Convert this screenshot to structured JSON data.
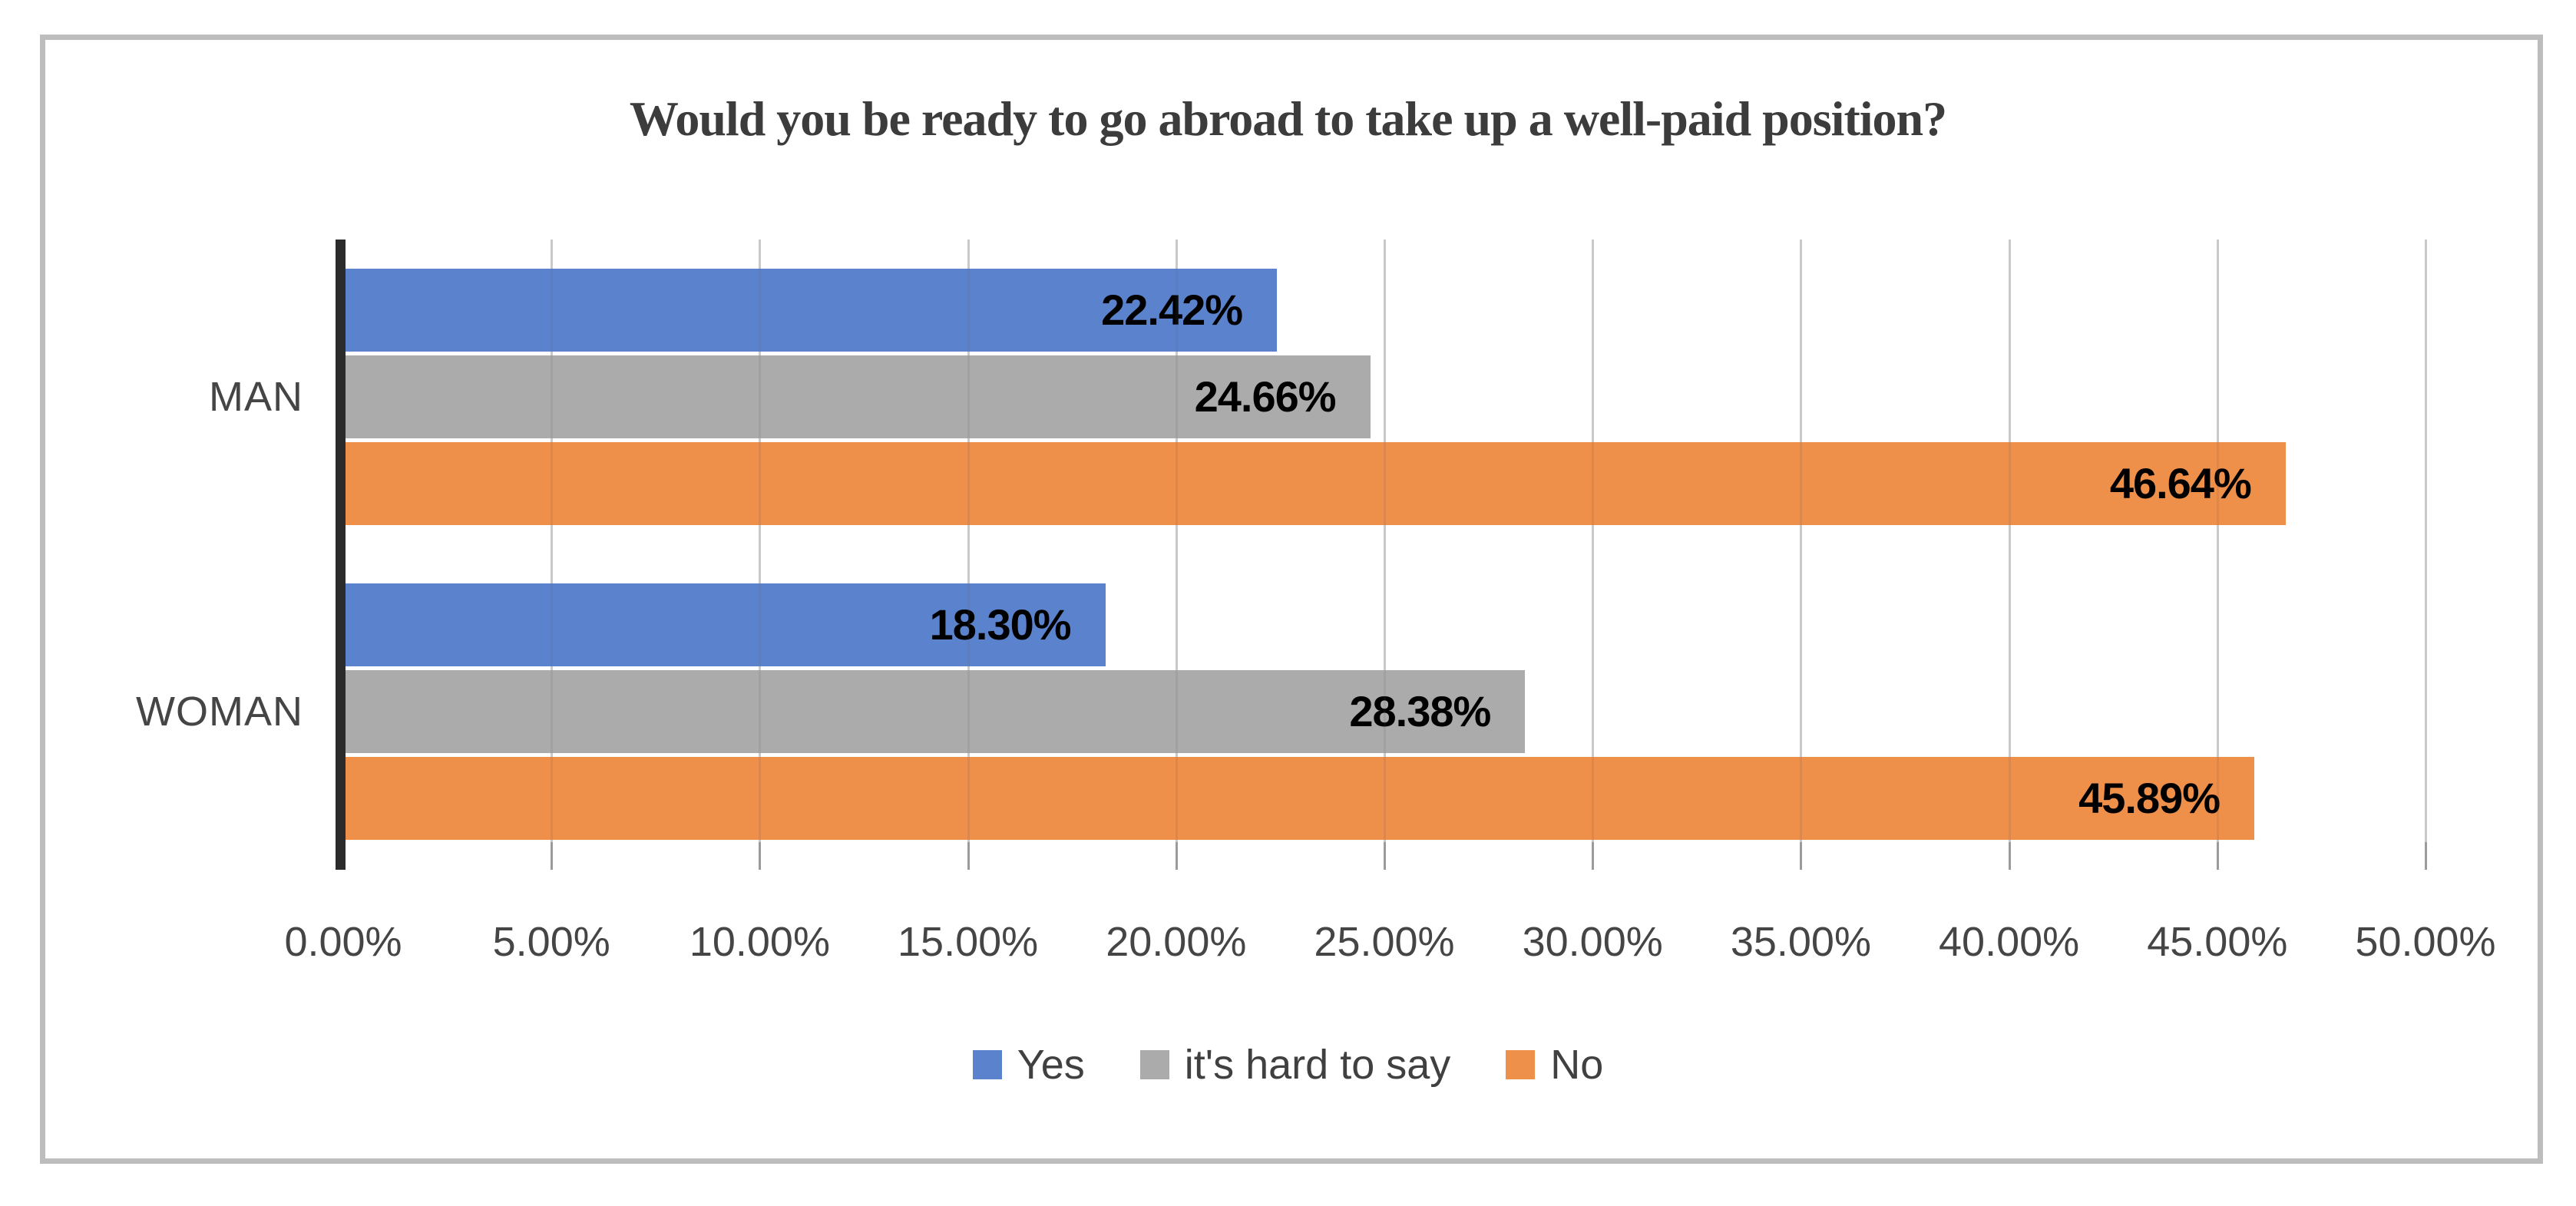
{
  "chart_data": {
    "type": "bar",
    "orientation": "horizontal",
    "title": "Would you be ready to go abroad to take up a well-paid position?",
    "categories": [
      "MAN",
      "WOMAN"
    ],
    "series": [
      {
        "name": "Yes",
        "color": "#5B83CD",
        "values": [
          22.42,
          18.3
        ],
        "data_labels": [
          "22.42%",
          "18.30%"
        ]
      },
      {
        "name": "it's hard to say",
        "color": "#ABABAB",
        "values": [
          24.66,
          28.38
        ],
        "data_labels": [
          "24.66%",
          "28.38%"
        ]
      },
      {
        "name": "No",
        "color": "#EE8F4A",
        "values": [
          46.64,
          45.89
        ],
        "data_labels": [
          "46.64%",
          "45.89%"
        ]
      }
    ],
    "x_axis": {
      "min": 0,
      "max": 50,
      "step": 5,
      "tick_labels": [
        "0.00%",
        "5.00%",
        "10.00%",
        "15.00%",
        "20.00%",
        "25.00%",
        "30.00%",
        "35.00%",
        "40.00%",
        "45.00%",
        "50.00%"
      ]
    },
    "legend": {
      "position": "bottom",
      "items": [
        "Yes",
        "it's hard to say",
        "No"
      ]
    },
    "grid": true,
    "colors": {
      "axis_line": "#2B2B2B",
      "gridline": "#D9D9D9",
      "chart_border": "#BDBDBD",
      "title_text": "#3C3C3C",
      "axis_text": "#454545",
      "data_label_text": "#000000"
    }
  }
}
